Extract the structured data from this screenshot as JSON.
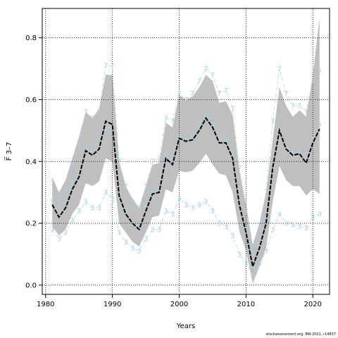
{
  "chart_data": {
    "type": "line",
    "title": "",
    "xlabel": "Years",
    "ylabel": "F̅ 3–7",
    "xlim": [
      1979.5,
      2022.5
    ],
    "ylim": [
      -0.03,
      0.895
    ],
    "xticks": [
      1980,
      1990,
      2000,
      2010,
      2020
    ],
    "yticks": [
      0.0,
      0.2,
      0.4,
      0.6,
      0.8
    ],
    "x": [
      1981,
      1982,
      1983,
      1984,
      1985,
      1986,
      1987,
      1988,
      1989,
      1990,
      1991,
      1992,
      1993,
      1994,
      1995,
      1996,
      1997,
      1998,
      1999,
      2000,
      2001,
      2002,
      2003,
      2004,
      2005,
      2006,
      2007,
      2008,
      2009,
      2010,
      2011,
      2012,
      2013,
      2014,
      2015,
      2016,
      2017,
      2018,
      2019,
      2020,
      2021
    ],
    "series": [
      {
        "name": "estimate",
        "values": [
          0.26,
          0.22,
          0.25,
          0.31,
          0.35,
          0.435,
          0.42,
          0.44,
          0.53,
          0.52,
          0.29,
          0.23,
          0.2,
          0.18,
          0.24,
          0.295,
          0.3,
          0.41,
          0.39,
          0.475,
          0.465,
          0.47,
          0.5,
          0.54,
          0.51,
          0.46,
          0.46,
          0.41,
          0.26,
          0.17,
          0.06,
          0.12,
          0.2,
          0.38,
          0.5,
          0.44,
          0.42,
          0.425,
          0.395,
          0.46,
          0.505
        ]
      },
      {
        "name": "upper",
        "values": [
          0.35,
          0.3,
          0.34,
          0.41,
          0.48,
          0.56,
          0.54,
          0.57,
          0.68,
          0.68,
          0.4,
          0.32,
          0.28,
          0.25,
          0.32,
          0.39,
          0.395,
          0.525,
          0.51,
          0.615,
          0.6,
          0.61,
          0.64,
          0.68,
          0.66,
          0.59,
          0.595,
          0.55,
          0.37,
          0.26,
          0.13,
          0.2,
          0.3,
          0.47,
          0.64,
          0.58,
          0.545,
          0.565,
          0.545,
          0.68,
          0.865
        ]
      },
      {
        "name": "lower",
        "values": [
          0.19,
          0.16,
          0.18,
          0.23,
          0.26,
          0.33,
          0.32,
          0.335,
          0.41,
          0.4,
          0.2,
          0.17,
          0.14,
          0.125,
          0.17,
          0.22,
          0.225,
          0.31,
          0.3,
          0.37,
          0.365,
          0.37,
          0.395,
          0.425,
          0.39,
          0.36,
          0.355,
          0.3,
          0.175,
          0.11,
          0.005,
          0.06,
          0.12,
          0.27,
          0.385,
          0.34,
          0.32,
          0.32,
          0.29,
          0.31,
          0.295
        ]
      },
      {
        "name": "age 3",
        "label": "3",
        "color": "#a6d4e2",
        "values": [
          0.18,
          0.15,
          0.17,
          0.21,
          0.24,
          0.27,
          0.25,
          0.25,
          0.3,
          0.28,
          0.17,
          0.14,
          0.12,
          0.11,
          0.15,
          0.18,
          0.18,
          0.24,
          0.23,
          0.28,
          0.26,
          0.25,
          0.26,
          0.27,
          0.24,
          0.2,
          0.19,
          0.16,
          0.1,
          0.07,
          0.03,
          0.07,
          0.11,
          0.18,
          0.23,
          0.2,
          0.195,
          0.19,
          0.185,
          0.22,
          0.23
        ]
      },
      {
        "name": "age 5",
        "label": "5",
        "color": "#a6d4e2",
        "values": [
          0.27,
          0.23,
          0.26,
          0.33,
          0.36,
          0.44,
          0.43,
          0.45,
          0.51,
          0.5,
          0.3,
          0.24,
          0.2,
          0.19,
          0.25,
          0.3,
          0.31,
          0.42,
          0.4,
          0.48,
          0.47,
          0.48,
          0.52,
          0.55,
          0.52,
          0.47,
          0.47,
          0.42,
          0.27,
          0.18,
          0.065,
          0.13,
          0.21,
          0.39,
          0.5,
          0.45,
          0.43,
          0.43,
          0.405,
          0.47,
          0.52
        ]
      },
      {
        "name": "age 7",
        "label": "7",
        "color": "#a6d4e2",
        "values": [
          0.33,
          0.28,
          0.31,
          0.39,
          0.45,
          0.56,
          0.54,
          0.56,
          0.71,
          0.71,
          0.4,
          0.32,
          0.27,
          0.25,
          0.32,
          0.4,
          0.41,
          0.54,
          0.53,
          0.62,
          0.6,
          0.62,
          0.66,
          0.7,
          0.68,
          0.62,
          0.63,
          0.57,
          0.38,
          0.24,
          0.1,
          0.18,
          0.3,
          0.53,
          0.7,
          0.62,
          0.58,
          0.58,
          0.56,
          0.66,
          0.69
        ]
      }
    ],
    "band_color": "#bfbfbf",
    "grid": true,
    "footnote": "stockassessment.org, BW-2021, r14837"
  }
}
